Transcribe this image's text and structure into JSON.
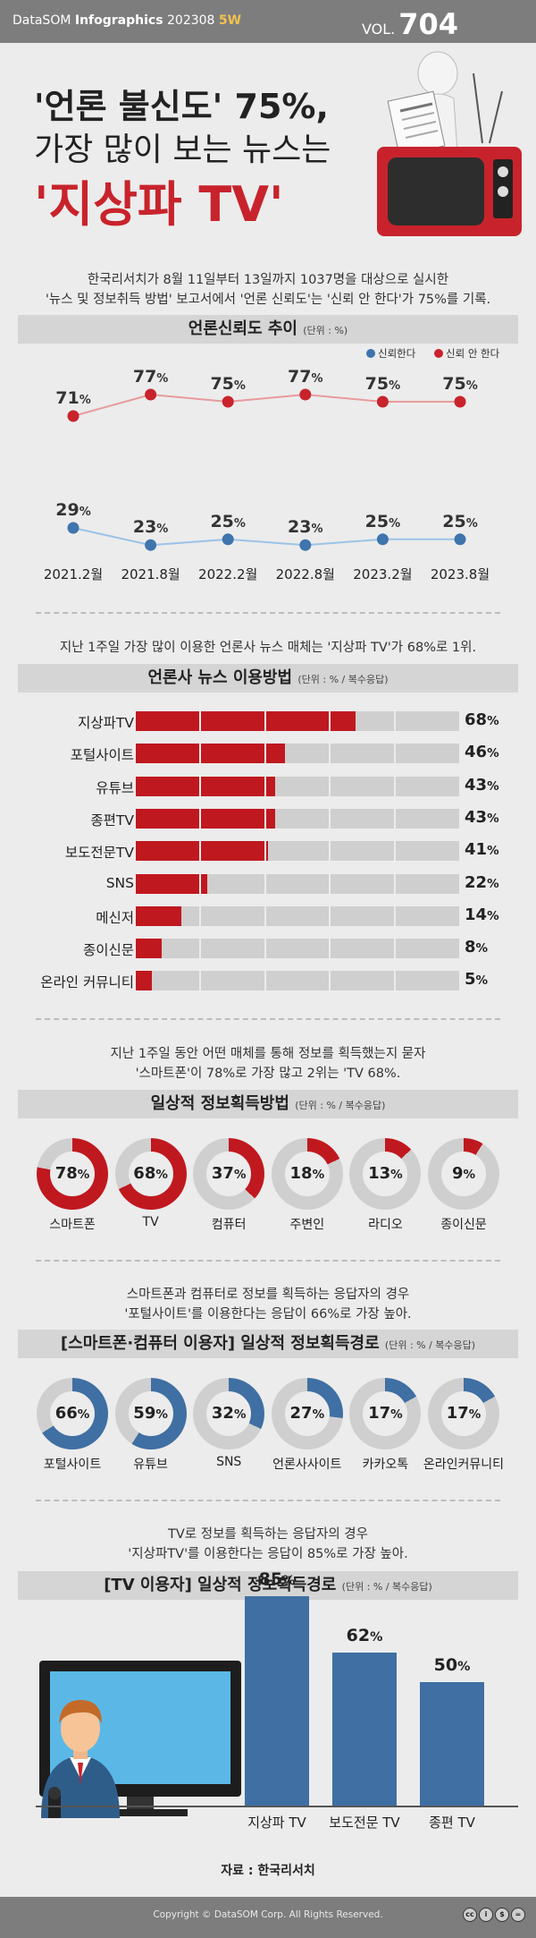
{
  "header": {
    "brand_prefix": "DataSOM",
    "brand_name": "Infographics",
    "issue_date": "202308",
    "issue_week": "5W",
    "vol_label": "VOL.",
    "vol_number": "704"
  },
  "title": {
    "line1": "'언론 불신도' 75%,",
    "line2": "가장 많이 보는 뉴스는",
    "line3": "'지상파 TV'"
  },
  "hero_icons": [
    "newspaper-reader-icon",
    "retro-tv-icon"
  ],
  "section1": {
    "intro": [
      "한국리서치가 8월 11일부터 13일까지 1037명을 대상으로 실시한",
      "'뉴스 및 정보취득 방법' 보고서에서 '언론 신뢰도'는 '신뢰 안 한다'가 75%를 기록."
    ],
    "band_title": "언론신뢰도 추이",
    "band_unit": "(단위 : %)"
  },
  "section2": {
    "intro": [
      "지난 1주일 가장 많이 이용한 언론사 뉴스 매체는 '지상파 TV'가 68%로 1위."
    ],
    "band_title": "언론사 뉴스 이용방법",
    "band_unit": "(단위 : % / 복수응답)"
  },
  "section3": {
    "intro": [
      "지난 1주일 동안 어떤 매체를 통해 정보를 획득했는지 묻자",
      "'스마트폰'이 78%로 가장 많고 2위는 'TV 68%."
    ],
    "band_title": "일상적 정보획득방법",
    "band_unit": "(단위 : % / 복수응답)"
  },
  "section4": {
    "intro": [
      "스마트폰과 컴퓨터로 정보를 획득하는 응답자의 경우",
      "'포털사이트'를 이용한다는 응답이 66%로 가장 높아."
    ],
    "band_title": "[스마트폰·컴퓨터 이용자] 일상적 정보획득경로",
    "band_unit": "(단위 : % / 복수응답)"
  },
  "section5": {
    "intro": [
      "TV로 정보를 획득하는 응답자의 경우",
      "'지상파TV'를 이용한다는 응답이 85%로 가장 높아."
    ],
    "band_title": "[TV 이용자] 일상적 정보획득경로",
    "band_unit": "(단위 : % / 복수응답)",
    "illustration_icon": "news-anchor-on-tv-icon"
  },
  "source": "자료 : 한국리서치",
  "footer": {
    "copyright": "Copyright © DataSOM Corp. All Rights Reserved.",
    "license_icons": [
      "cc-icon",
      "by-icon",
      "nc-icon",
      "nd-icon"
    ]
  },
  "colors": {
    "distrust": "#c8232c",
    "trust": "#3f74ad",
    "donut_red": "#c0181f",
    "donut_blue": "#3f6fa3",
    "track": "#cfcfcf",
    "bar_blue": "#3f6fa3"
  },
  "chart_data": [
    {
      "type": "line",
      "title": "언론신뢰도 추이",
      "unit": "(단위 : %)",
      "x": [
        "2021.2월",
        "2021.8월",
        "2022.2월",
        "2022.8월",
        "2023.2월",
        "2023.8월"
      ],
      "series": [
        {
          "name": "신뢰한다",
          "values": [
            29,
            23,
            25,
            23,
            25,
            25
          ],
          "color": "#3f74ad"
        },
        {
          "name": "신뢰 안 한다",
          "values": [
            71,
            77,
            75,
            77,
            75,
            75
          ],
          "color": "#c8232c"
        }
      ],
      "legend_position": "top-right",
      "grid": false
    },
    {
      "type": "bar",
      "orientation": "horizontal",
      "title": "언론사 뉴스 이용방법",
      "unit": "(단위 : % / 복수응답)",
      "categories": [
        "지상파TV",
        "포털사이트",
        "유튜브",
        "종편TV",
        "보도전문TV",
        "SNS",
        "메신저",
        "종이신문",
        "온라인 커뮤니티"
      ],
      "values": [
        68,
        46,
        43,
        43,
        41,
        22,
        14,
        8,
        5
      ],
      "xlim": [
        0,
        100
      ]
    },
    {
      "type": "pie",
      "style": "donut",
      "title": "일상적 정보획득방법",
      "unit": "(단위 : % / 복수응답)",
      "categories": [
        "스마트폰",
        "TV",
        "컴퓨터",
        "주변인",
        "라디오",
        "종이신문"
      ],
      "values": [
        78,
        68,
        37,
        18,
        13,
        9
      ]
    },
    {
      "type": "pie",
      "style": "donut",
      "title": "[스마트폰·컴퓨터 이용자] 일상적 정보획득경로",
      "unit": "(단위 : % / 복수응답)",
      "categories": [
        "포털사이트",
        "유튜브",
        "SNS",
        "언론사사이트",
        "카카오톡",
        "온라인커뮤니티"
      ],
      "values": [
        66,
        59,
        32,
        27,
        17,
        17
      ]
    },
    {
      "type": "bar",
      "title": "[TV 이용자] 일상적 정보획득경로",
      "unit": "(단위 : % / 복수응답)",
      "categories": [
        "지상파 TV",
        "보도전문 TV",
        "종편 TV"
      ],
      "values": [
        85,
        62,
        50
      ],
      "ylim": [
        0,
        100
      ]
    }
  ]
}
